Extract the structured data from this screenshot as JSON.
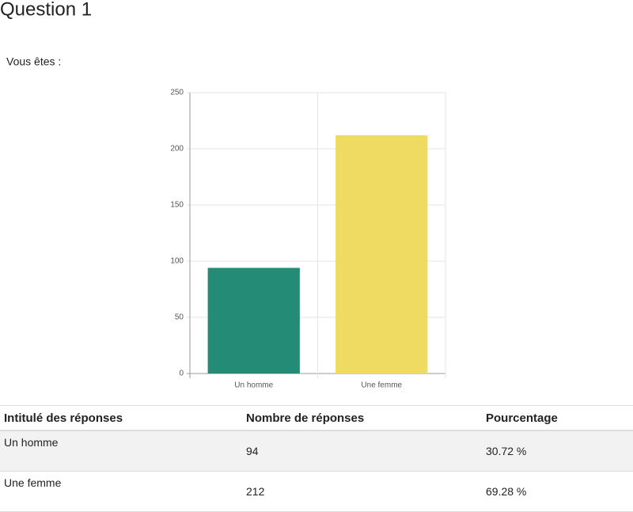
{
  "heading": "Question 1",
  "question": "Vous êtes :",
  "chart_data": {
    "type": "bar",
    "categories": [
      "Un homme",
      "Une femme"
    ],
    "values": [
      94,
      212
    ],
    "colors": [
      "#238b76",
      "#f0db62"
    ],
    "ylim": [
      0,
      250
    ],
    "yticks": [
      0,
      50,
      100,
      150,
      200,
      250
    ],
    "grid": true
  },
  "table": {
    "header": [
      "Intitulé des réponses",
      "Nombre de réponses",
      "Pourcentage"
    ],
    "rows": [
      [
        "Un homme",
        "94",
        "30.72 %"
      ],
      [
        "Une femme",
        "212",
        "69.28 %"
      ]
    ]
  }
}
